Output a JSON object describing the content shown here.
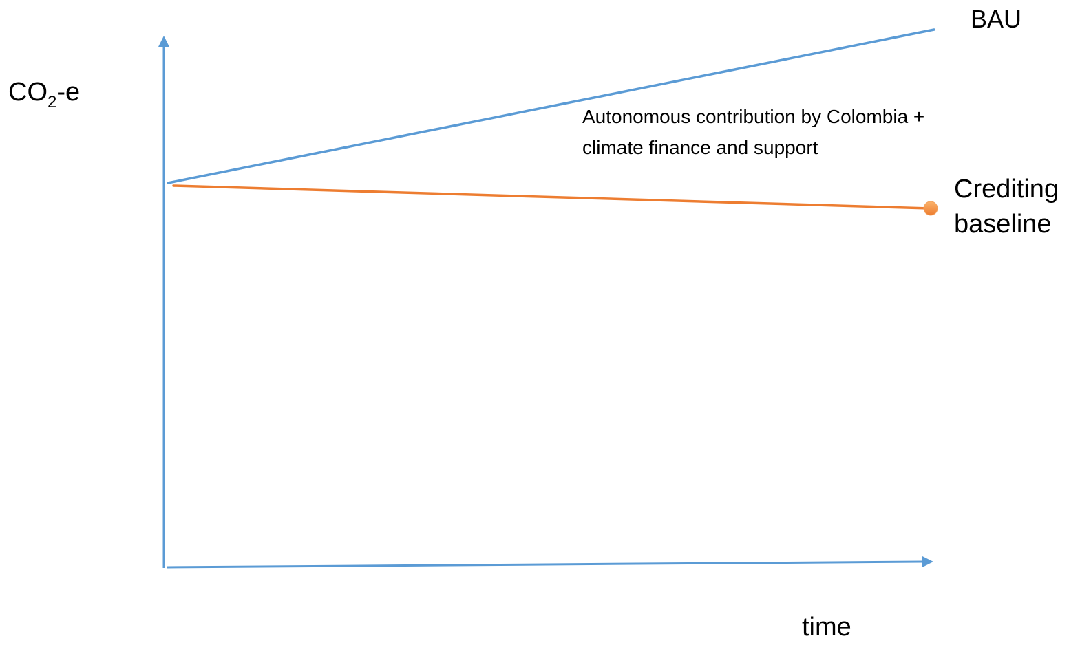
{
  "diagram": {
    "y_axis": {
      "label_main": "CO",
      "label_sub": "2",
      "label_suffix": "-e"
    },
    "x_axis": {
      "label": "time"
    },
    "lines": [
      {
        "name": "BAU",
        "color": "#5b9bd5",
        "trend": "rising"
      },
      {
        "name": "Crediting baseline",
        "color": "#ed7d31",
        "trend": "slightly declining",
        "endpoint_marker": "dot"
      }
    ],
    "labels": {
      "bau": "BAU",
      "crediting_line1": "Crediting",
      "crediting_line2": "baseline"
    },
    "annotation": {
      "line1": "Autonomous contribution by Colombia +",
      "line2": "climate finance and support"
    },
    "colors": {
      "axis": "#5b9bd5",
      "bau": "#5b9bd5",
      "crediting": "#ed7d31",
      "marker_fill": "#f79646"
    }
  }
}
